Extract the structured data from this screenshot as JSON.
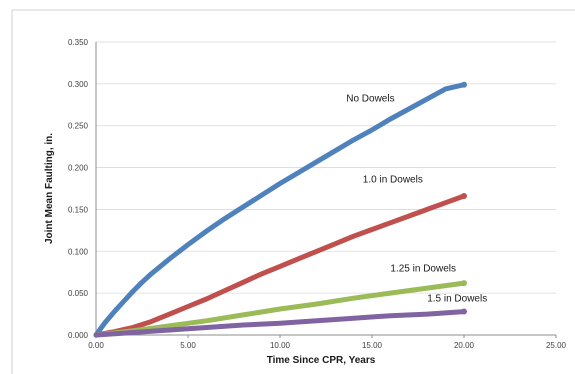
{
  "chart_data": {
    "type": "line",
    "title": "",
    "xlabel": "Time Since CPR, Years",
    "ylabel": "Joint Mean Faulting, in.",
    "xlim": [
      0,
      25
    ],
    "ylim": [
      0,
      0.35
    ],
    "x_ticks": [
      "0.00",
      "5.00",
      "10.00",
      "15.00",
      "20.00",
      "25.00"
    ],
    "y_ticks": [
      "0.000",
      "0.050",
      "0.100",
      "0.150",
      "0.200",
      "0.250",
      "0.300",
      "0.350"
    ],
    "grid": "horizontal",
    "legend": "none",
    "series": [
      {
        "name": "No Dowels",
        "color": "#4f81bd",
        "x": [
          0,
          0.5,
          1,
          1.5,
          2,
          2.5,
          3,
          4,
          5,
          6,
          7,
          8,
          9,
          10,
          11,
          12,
          13,
          14,
          15,
          16,
          17,
          18,
          19,
          20
        ],
        "y": [
          0.0,
          0.015,
          0.028,
          0.04,
          0.052,
          0.063,
          0.073,
          0.091,
          0.108,
          0.124,
          0.139,
          0.153,
          0.167,
          0.181,
          0.194,
          0.207,
          0.22,
          0.233,
          0.245,
          0.258,
          0.27,
          0.282,
          0.294,
          0.299
        ]
      },
      {
        "name": "1.0 in Dowels",
        "color": "#c0504d",
        "x": [
          0,
          1,
          2,
          3,
          4,
          5,
          6,
          7,
          8,
          9,
          10,
          11,
          12,
          13,
          14,
          15,
          16,
          17,
          18,
          19,
          20
        ],
        "y": [
          0.0,
          0.004,
          0.009,
          0.016,
          0.025,
          0.034,
          0.043,
          0.053,
          0.063,
          0.073,
          0.082,
          0.091,
          0.1,
          0.109,
          0.118,
          0.126,
          0.134,
          0.142,
          0.15,
          0.158,
          0.166
        ]
      },
      {
        "name": "1.25 in Dowels",
        "color": "#9bbb59",
        "x": [
          0,
          2,
          4,
          6,
          8,
          10,
          12,
          14,
          16,
          18,
          20
        ],
        "y": [
          0.0,
          0.005,
          0.011,
          0.017,
          0.024,
          0.031,
          0.037,
          0.044,
          0.05,
          0.056,
          0.062
        ]
      },
      {
        "name": "1.5 in Dowels",
        "color": "#8064a2",
        "x": [
          0,
          2,
          4,
          6,
          8,
          10,
          12,
          14,
          16,
          18,
          20
        ],
        "y": [
          0.0,
          0.003,
          0.006,
          0.009,
          0.012,
          0.014,
          0.017,
          0.02,
          0.023,
          0.025,
          0.028
        ]
      }
    ],
    "annotations": [
      {
        "text": "No Dowels",
        "x": 13.6,
        "y": 0.279,
        "series": "No Dowels"
      },
      {
        "text": "1.0 in Dowels",
        "x": 14.5,
        "y": 0.182,
        "series": "1.0 in Dowels"
      },
      {
        "text": "1.25 in Dowels",
        "x": 16.0,
        "y": 0.076,
        "series": "1.25 in Dowels"
      },
      {
        "text": "1.5 in Dowels",
        "x": 18.0,
        "y": 0.04,
        "series": "1.5 in Dowels"
      }
    ]
  }
}
